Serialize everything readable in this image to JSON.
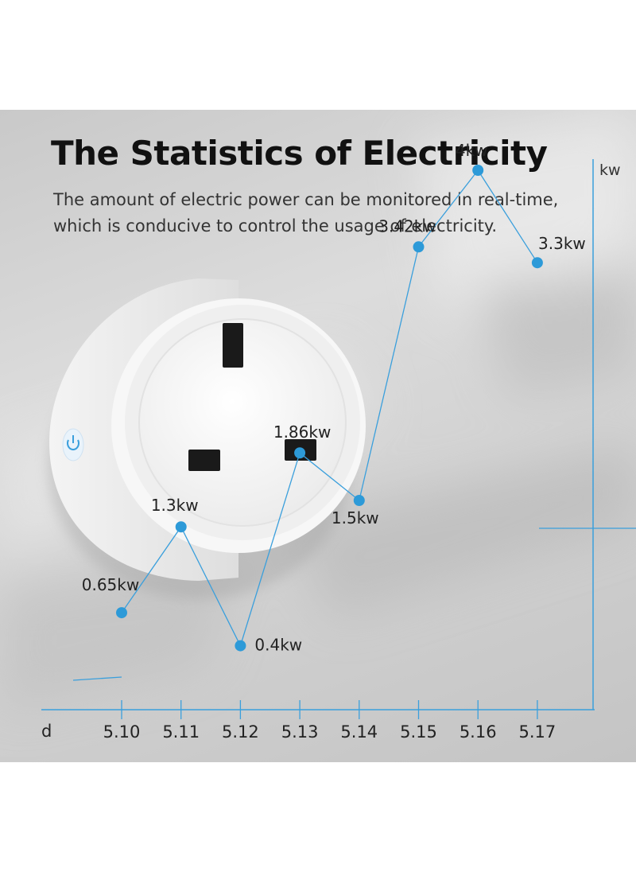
{
  "header": {
    "title": "The Statistics of Electricity",
    "subtitle_line1": "The amount of electric power can be monitored in real-time,",
    "subtitle_line2": "which is conducive to control the usage of electricity."
  },
  "product": {
    "name": "smart-plug",
    "power_icon": "power-button-icon"
  },
  "colors": {
    "accent": "#3a9fdc",
    "point": "#2d9ad8",
    "title": "#111111",
    "text": "#333333",
    "background": "#d6d6d6"
  },
  "chart_data": {
    "type": "line",
    "xlabel": "d",
    "ylabel": "kw",
    "categories": [
      "5.10",
      "5.11",
      "5.12",
      "5.13",
      "5.14",
      "5.15",
      "5.16",
      "5.17"
    ],
    "values": [
      0.65,
      1.3,
      0.4,
      1.86,
      1.5,
      3.42,
      4,
      3.3
    ],
    "data_labels": [
      "0.65kw",
      "1.3kw",
      "0.4kw",
      "1.86kw",
      "1.5kw",
      "3.42kw",
      "4kw",
      "3.3kw"
    ],
    "grid": false,
    "legend": "none"
  }
}
